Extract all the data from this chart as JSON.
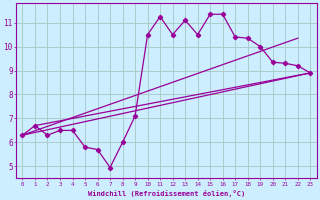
{
  "xlabel": "Windchill (Refroidissement éolien,°C)",
  "bg_color": "#cceeff",
  "line_color": "#990099",
  "grid_color": "#aacccc",
  "x_ticks": [
    0,
    1,
    2,
    3,
    4,
    5,
    6,
    7,
    8,
    9,
    10,
    11,
    12,
    13,
    14,
    15,
    16,
    17,
    18,
    19,
    20,
    21,
    22,
    23
  ],
  "y_ticks": [
    5,
    6,
    7,
    8,
    9,
    10,
    11
  ],
  "xlim": [
    -0.5,
    23.5
  ],
  "ylim": [
    4.5,
    11.8
  ],
  "series1_x": [
    0,
    1,
    2,
    3,
    4,
    5,
    6,
    7,
    8,
    9,
    10,
    11,
    12,
    13,
    14,
    15,
    16,
    17,
    18,
    19,
    20,
    21,
    22,
    23
  ],
  "series1_y": [
    6.3,
    6.7,
    6.3,
    6.5,
    6.5,
    5.8,
    5.7,
    4.95,
    6.0,
    7.1,
    10.5,
    11.25,
    10.5,
    11.1,
    10.5,
    11.35,
    11.35,
    10.4,
    10.35,
    10.0,
    9.35,
    9.3,
    9.2,
    8.9
  ],
  "line2_x": [
    0,
    22
  ],
  "line2_y": [
    6.3,
    10.35
  ],
  "line3_x": [
    0,
    23
  ],
  "line3_y": [
    6.3,
    8.9
  ],
  "line4_x": [
    1,
    23
  ],
  "line4_y": [
    6.7,
    8.9
  ]
}
